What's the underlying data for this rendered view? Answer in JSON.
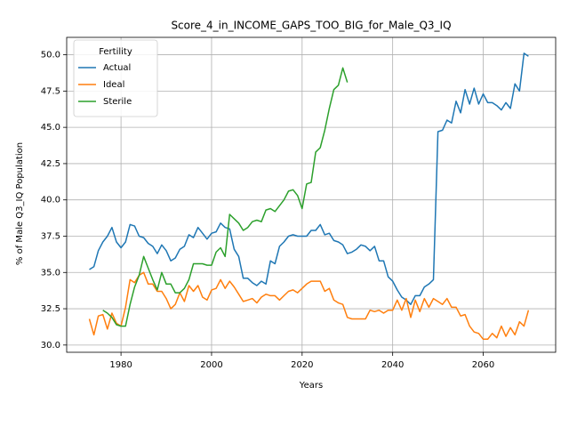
{
  "chart_data": {
    "type": "line",
    "title": "Score_4_in_INCOME_GAPS_TOO_BIG_for_Male_Q3_IQ",
    "xlabel": "Years",
    "ylabel": "% of Male Q3_IQ Population",
    "xlim": [
      1968,
      2076
    ],
    "ylim": [
      29.5,
      51.2
    ],
    "xticks": [
      1980,
      2000,
      2020,
      2040,
      2060
    ],
    "yticks": [
      30.0,
      32.5,
      35.0,
      37.5,
      40.0,
      42.5,
      45.0,
      47.5,
      50.0
    ],
    "grid": true,
    "legend": {
      "title": "Fertility",
      "placement": "top-left"
    },
    "series": [
      {
        "name": "Actual",
        "color": "#1f77b4",
        "x": [
          1973,
          1974,
          1975,
          1976,
          1977,
          1978,
          1979,
          1980,
          1981,
          1982,
          1983,
          1984,
          1985,
          1986,
          1987,
          1988,
          1989,
          1990,
          1991,
          1992,
          1993,
          1994,
          1995,
          1996,
          1997,
          1998,
          1999,
          2000,
          2001,
          2002,
          2003,
          2004,
          2005,
          2006,
          2007,
          2008,
          2009,
          2010,
          2011,
          2012,
          2013,
          2014,
          2015,
          2016,
          2017,
          2018,
          2019,
          2020,
          2021,
          2022,
          2023,
          2024,
          2025,
          2026,
          2027,
          2028,
          2029,
          2030,
          2031,
          2032,
          2033,
          2034,
          2035,
          2036,
          2037,
          2038,
          2039,
          2040,
          2041,
          2042,
          2043,
          2044,
          2045,
          2046,
          2047,
          2048,
          2049,
          2050,
          2051,
          2052,
          2053,
          2054,
          2055,
          2056,
          2057,
          2058,
          2059,
          2060,
          2061,
          2062,
          2063,
          2064,
          2065,
          2066,
          2067,
          2068,
          2069,
          2070
        ],
        "values": [
          35.2,
          35.4,
          36.5,
          37.1,
          37.5,
          38.1,
          37.1,
          36.7,
          37.1,
          38.3,
          38.2,
          37.5,
          37.4,
          37.0,
          36.8,
          36.3,
          36.9,
          36.5,
          35.8,
          36.0,
          36.6,
          36.8,
          37.6,
          37.4,
          38.1,
          37.7,
          37.3,
          37.7,
          37.8,
          38.4,
          38.1,
          38.0,
          36.6,
          36.1,
          34.6,
          34.6,
          34.3,
          34.1,
          34.4,
          34.2,
          35.8,
          35.6,
          36.8,
          37.1,
          37.5,
          37.6,
          37.5,
          37.5,
          37.5,
          37.9,
          37.9,
          38.3,
          37.6,
          37.7,
          37.2,
          37.1,
          36.9,
          36.3,
          36.4,
          36.6,
          36.9,
          36.8,
          36.5,
          36.8,
          35.8,
          35.8,
          34.7,
          34.4,
          33.8,
          33.3,
          33.1,
          32.8,
          33.4,
          33.4,
          34.0,
          34.2,
          34.5,
          44.7,
          44.8,
          45.5,
          45.3,
          46.8,
          46.0,
          47.6,
          46.6,
          47.7,
          46.6,
          47.3,
          46.7,
          46.7,
          46.5,
          46.2,
          46.7,
          46.3,
          48.0,
          47.5,
          50.1,
          49.9
        ]
      },
      {
        "name": "Ideal",
        "color": "#ff7f0e",
        "x": [
          1973,
          1974,
          1975,
          1976,
          1977,
          1978,
          1979,
          1980,
          1981,
          1982,
          1983,
          1984,
          1985,
          1986,
          1987,
          1988,
          1989,
          1990,
          1991,
          1992,
          1993,
          1994,
          1995,
          1996,
          1997,
          1998,
          1999,
          2000,
          2001,
          2002,
          2003,
          2004,
          2005,
          2006,
          2007,
          2008,
          2009,
          2010,
          2011,
          2012,
          2013,
          2014,
          2015,
          2016,
          2017,
          2018,
          2019,
          2020,
          2021,
          2022,
          2023,
          2024,
          2025,
          2026,
          2027,
          2028,
          2029,
          2030,
          2031,
          2032,
          2033,
          2034,
          2035,
          2036,
          2037,
          2038,
          2039,
          2040,
          2041,
          2042,
          2043,
          2044,
          2045,
          2046,
          2047,
          2048,
          2049,
          2050,
          2051,
          2052,
          2053,
          2054,
          2055,
          2056,
          2057,
          2058,
          2059,
          2060,
          2061,
          2062,
          2063,
          2064,
          2065,
          2066,
          2067,
          2068,
          2069,
          2070
        ],
        "values": [
          31.8,
          30.7,
          32.0,
          32.1,
          31.1,
          32.2,
          31.5,
          31.3,
          32.6,
          34.5,
          34.3,
          34.8,
          35.0,
          34.2,
          34.2,
          33.7,
          33.7,
          33.2,
          32.5,
          32.8,
          33.6,
          33.0,
          34.1,
          33.7,
          34.1,
          33.3,
          33.1,
          33.8,
          33.9,
          34.5,
          33.9,
          34.4,
          34.0,
          33.5,
          33.0,
          33.1,
          33.2,
          32.9,
          33.3,
          33.5,
          33.4,
          33.4,
          33.1,
          33.4,
          33.7,
          33.8,
          33.6,
          33.9,
          34.2,
          34.4,
          34.4,
          34.4,
          33.7,
          33.9,
          33.1,
          32.9,
          32.8,
          31.9,
          31.8,
          31.8,
          31.8,
          31.8,
          32.4,
          32.3,
          32.4,
          32.2,
          32.4,
          32.4,
          33.1,
          32.4,
          33.2,
          31.9,
          33.1,
          32.3,
          33.2,
          32.6,
          33.2,
          33.0,
          32.8,
          33.2,
          32.6,
          32.6,
          32.0,
          32.1,
          31.3,
          30.9,
          30.8,
          30.4,
          30.4,
          30.8,
          30.5,
          31.3,
          30.6,
          31.2,
          30.7,
          31.6,
          31.3,
          32.4
        ]
      },
      {
        "name": "Sterile",
        "color": "#2ca02c",
        "x": [
          1976,
          1977,
          1978,
          1979,
          1980,
          1981,
          1982,
          1983,
          1984,
          1985,
          1986,
          1987,
          1988,
          1989,
          1990,
          1991,
          1992,
          1993,
          1994,
          1995,
          1996,
          1997,
          1998,
          1999,
          2000,
          2001,
          2002,
          2003,
          2004,
          2005,
          2006,
          2007,
          2008,
          2009,
          2010,
          2011,
          2012,
          2013,
          2014,
          2015,
          2016,
          2017,
          2018,
          2019,
          2020,
          2021,
          2022,
          2023,
          2024,
          2025,
          2026,
          2027,
          2028,
          2029,
          2030
        ],
        "values": [
          32.4,
          32.2,
          31.9,
          31.4,
          31.3,
          31.3,
          32.8,
          34.0,
          34.8,
          36.1,
          35.3,
          34.5,
          33.8,
          35.0,
          34.2,
          34.2,
          33.6,
          33.6,
          33.9,
          34.5,
          35.6,
          35.6,
          35.6,
          35.5,
          35.5,
          36.4,
          36.7,
          36.1,
          39.0,
          38.7,
          38.4,
          37.9,
          38.1,
          38.5,
          38.6,
          38.5,
          39.3,
          39.4,
          39.2,
          39.6,
          40.0,
          40.6,
          40.7,
          40.3,
          39.4,
          41.1,
          41.2,
          43.3,
          43.6,
          44.8,
          46.3,
          47.6,
          47.9,
          49.1,
          48.1
        ]
      }
    ]
  }
}
